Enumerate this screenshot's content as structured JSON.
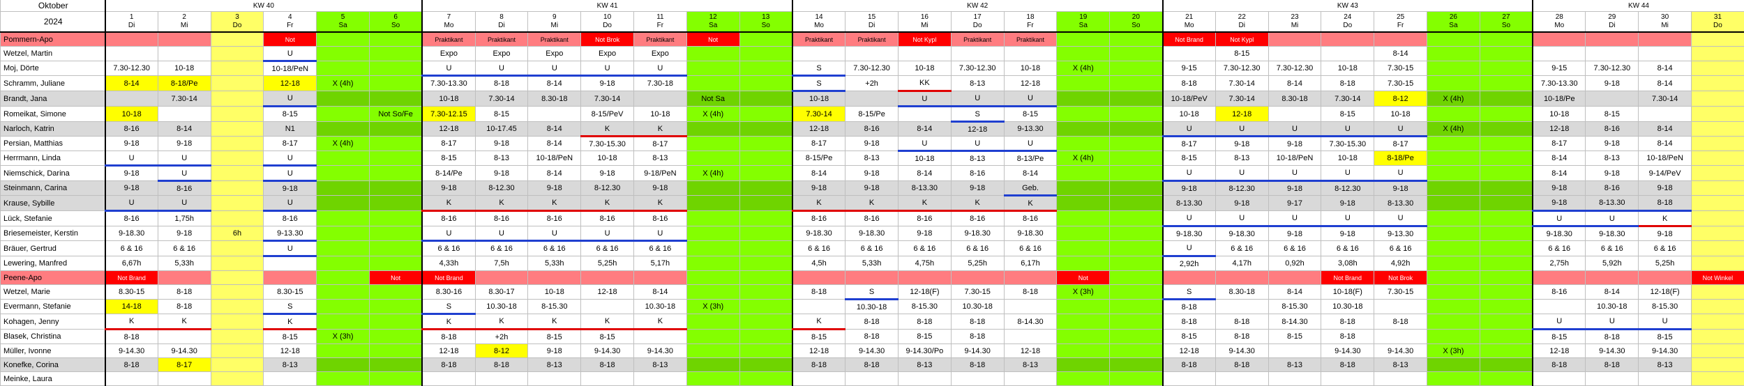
{
  "month": "Oktober",
  "year": "2024",
  "weeks": [
    {
      "label": "KW 40",
      "span": 6
    },
    {
      "label": "KW 41",
      "span": 7
    },
    {
      "label": "KW 42",
      "span": 7
    },
    {
      "label": "KW 43",
      "span": 7
    },
    {
      "label": "KW 44",
      "span": 4
    }
  ],
  "days": [
    {
      "n": "1",
      "d": "Di",
      "t": "wd"
    },
    {
      "n": "2",
      "d": "Mi",
      "t": "wd"
    },
    {
      "n": "3",
      "d": "Do",
      "t": "ho"
    },
    {
      "n": "4",
      "d": "Fr",
      "t": "wd"
    },
    {
      "n": "5",
      "d": "Sa",
      "t": "we"
    },
    {
      "n": "6",
      "d": "So",
      "t": "we"
    },
    {
      "n": "7",
      "d": "Mo",
      "t": "wd"
    },
    {
      "n": "8",
      "d": "Di",
      "t": "wd"
    },
    {
      "n": "9",
      "d": "Mi",
      "t": "wd"
    },
    {
      "n": "10",
      "d": "Do",
      "t": "wd"
    },
    {
      "n": "11",
      "d": "Fr",
      "t": "wd"
    },
    {
      "n": "12",
      "d": "Sa",
      "t": "we"
    },
    {
      "n": "13",
      "d": "So",
      "t": "we"
    },
    {
      "n": "14",
      "d": "Mo",
      "t": "wd"
    },
    {
      "n": "15",
      "d": "Di",
      "t": "wd"
    },
    {
      "n": "16",
      "d": "Mi",
      "t": "wd"
    },
    {
      "n": "17",
      "d": "Do",
      "t": "wd"
    },
    {
      "n": "18",
      "d": "Fr",
      "t": "wd"
    },
    {
      "n": "19",
      "d": "Sa",
      "t": "we"
    },
    {
      "n": "20",
      "d": "So",
      "t": "we"
    },
    {
      "n": "21",
      "d": "Mo",
      "t": "wd"
    },
    {
      "n": "22",
      "d": "Di",
      "t": "wd"
    },
    {
      "n": "23",
      "d": "Mi",
      "t": "wd"
    },
    {
      "n": "24",
      "d": "Do",
      "t": "wd"
    },
    {
      "n": "25",
      "d": "Fr",
      "t": "wd"
    },
    {
      "n": "26",
      "d": "Sa",
      "t": "we"
    },
    {
      "n": "27",
      "d": "So",
      "t": "we"
    },
    {
      "n": "28",
      "d": "Mo",
      "t": "wd"
    },
    {
      "n": "29",
      "d": "Di",
      "t": "wd"
    },
    {
      "n": "30",
      "d": "Mi",
      "t": "wd"
    },
    {
      "n": "31",
      "d": "Do",
      "t": "ho"
    }
  ],
  "colors": {
    "weekend": "#84ff00",
    "holiday": "#ffff66",
    "section": "#ff7c80",
    "alarm": "#ff0000",
    "highlight": "#ffff00",
    "gray_row": "#d9d9d9",
    "underline_blue": "#1f3fd0",
    "underline_red": "#e00000"
  },
  "rows": [
    {
      "type": "section",
      "name": "Pommern-Apo",
      "cells": [
        "",
        "",
        "",
        "Not",
        "",
        "",
        "Praktikant",
        "Praktikant",
        "Praktikant",
        "Not Brok",
        "Praktikant",
        "Not",
        "",
        "Praktikant",
        "Praktikant",
        "Not Kypl",
        "Praktikant",
        "Praktikant",
        "",
        "",
        "Not Brand",
        "Not Kypl",
        "",
        "",
        "",
        "",
        "",
        "",
        "",
        "",
        ""
      ],
      "red": [
        3,
        9,
        11,
        15,
        20,
        21
      ]
    },
    {
      "type": "p",
      "name": "Wetzel, Martin",
      "cells": [
        "",
        "",
        "",
        "U",
        "",
        "",
        "Expo",
        "Expo",
        "Expo",
        "Expo",
        "Expo",
        "",
        "",
        "",
        "",
        "",
        "",
        "",
        "",
        "",
        "",
        "8-15",
        "",
        "",
        "8-14",
        "",
        "",
        "",
        "",
        "",
        ""
      ],
      "ub": [
        3
      ]
    },
    {
      "type": "p",
      "name": "Moj, Dörte",
      "cells": [
        "7.30-12.30",
        "10-18",
        "",
        "10-18/PeN",
        "",
        "",
        "U",
        "U",
        "U",
        "U",
        "U",
        "",
        "",
        "S",
        "7.30-12.30",
        "10-18",
        "7.30-12.30",
        "10-18",
        "X (4h)",
        "",
        "9-15",
        "7.30-12.30",
        "7.30-12.30",
        "10-18",
        "7.30-15",
        "",
        "",
        "9-15",
        "7.30-12.30",
        "8-14",
        ""
      ],
      "ub": [
        6,
        7,
        8,
        9,
        10,
        13
      ]
    },
    {
      "type": "p",
      "name": "Schramm, Juliane",
      "cells": [
        "8-14",
        "8-18/Pe",
        "",
        "12-18",
        "X (4h)",
        "",
        "7.30-13.30",
        "8-18",
        "8-14",
        "9-18",
        "7.30-18",
        "",
        "",
        "S",
        "+2h",
        "KK",
        "8-13",
        "12-18",
        "",
        "",
        "8-18",
        "7.30-14",
        "8-14",
        "8-18",
        "7.30-15",
        "",
        "",
        "7.30-13.30",
        "9-18",
        "8-14",
        ""
      ],
      "yel": [
        0,
        1,
        3
      ],
      "ub": [
        13
      ],
      "ur": [
        15
      ]
    },
    {
      "type": "g",
      "name": "Brandt, Jana",
      "cells": [
        "",
        "7.30-14",
        "",
        "U",
        "",
        "",
        "10-18",
        "7.30-14",
        "8.30-18",
        "7.30-14",
        "",
        "Not Sa",
        "",
        "10-18",
        "",
        "U",
        "U",
        "U",
        "",
        "",
        "10-18/PeV",
        "7.30-14",
        "8.30-18",
        "7.30-14",
        "8-12",
        "X (4h)",
        "",
        "10-18/Pe",
        "",
        "7.30-14",
        ""
      ],
      "yel": [
        24
      ],
      "ub": [
        3,
        15,
        16,
        17
      ]
    },
    {
      "type": "p",
      "name": "Romeikat, Simone",
      "cells": [
        "10-18",
        "",
        "",
        "8-15",
        "",
        "Not So/Fe",
        "7.30-12.15",
        "8-15",
        "",
        "8-15/PeV",
        "10-18",
        "X (4h)",
        "",
        "7.30-14",
        "8-15/Pe",
        "",
        "S",
        "8-15",
        "",
        "",
        "10-18",
        "12-18",
        "",
        "8-15",
        "10-18",
        "",
        "",
        "10-18",
        "8-15",
        "",
        ""
      ],
      "yel": [
        0,
        6,
        13,
        21
      ],
      "ub": [
        16
      ]
    },
    {
      "type": "g",
      "name": "Narloch, Katrin",
      "cells": [
        "8-16",
        "8-14",
        "",
        "N1",
        "",
        "",
        "12-18",
        "10-17.45",
        "8-14",
        "K",
        "K",
        "",
        "",
        "12-18",
        "8-16",
        "8-14",
        "12-18",
        "9-13.30",
        "",
        "",
        "U",
        "U",
        "U",
        "U",
        "U",
        "X (4h)",
        "",
        "12-18",
        "8-16",
        "8-14",
        ""
      ],
      "ur": [
        9,
        10
      ],
      "ub": [
        20,
        21,
        22,
        23,
        24
      ]
    },
    {
      "type": "p",
      "name": "Persian, Matthias",
      "cells": [
        "9-18",
        "9-18",
        "",
        "8-17",
        "X (4h)",
        "",
        "8-17",
        "9-18",
        "8-14",
        "7.30-15.30",
        "8-17",
        "",
        "",
        "8-17",
        "9-18",
        "U",
        "U",
        "U",
        "",
        "",
        "8-17",
        "9-18",
        "9-18",
        "7.30-15.30",
        "8-17",
        "",
        "",
        "8-17",
        "9-18",
        "8-14",
        ""
      ],
      "ub": [
        15,
        16,
        17
      ]
    },
    {
      "type": "p",
      "name": "Herrmann, Linda",
      "cells": [
        "U",
        "U",
        "",
        "U",
        "",
        "",
        "8-15",
        "8-13",
        "10-18/PeN",
        "10-18",
        "8-13",
        "",
        "",
        "8-15/Pe",
        "8-13",
        "10-18",
        "8-13",
        "8-13/Pe",
        "X (4h)",
        "",
        "8-15",
        "8-13",
        "10-18/PeN",
        "10-18",
        "8-18/Pe",
        "",
        "",
        "8-14",
        "8-13",
        "10-18/PeN",
        ""
      ],
      "yel": [
        24
      ],
      "ub": [
        0,
        1,
        3
      ]
    },
    {
      "type": "p",
      "name": "Niemschick, Darina",
      "cells": [
        "9-18",
        "U",
        "",
        "U",
        "",
        "",
        "8-14/Pe",
        "9-18",
        "8-14",
        "9-18",
        "9-18/PeN",
        "X (4h)",
        "",
        "8-14",
        "9-18",
        "8-14",
        "8-16",
        "8-14",
        "",
        "",
        "U",
        "U",
        "U",
        "U",
        "U",
        "",
        "",
        "8-14",
        "9-18",
        "9-14/PeV",
        ""
      ],
      "ub": [
        1,
        3,
        20,
        21,
        22,
        23,
        24
      ]
    },
    {
      "type": "g",
      "name": "Steinmann, Carina",
      "cells": [
        "9-18",
        "8-16",
        "",
        "9-18",
        "",
        "",
        "9-18",
        "8-12.30",
        "9-18",
        "8-12.30",
        "9-18",
        "",
        "",
        "9-18",
        "9-18",
        "8-13.30",
        "9-18",
        "Geb.",
        "",
        "",
        "9-18",
        "8-12.30",
        "9-18",
        "8-12.30",
        "9-18",
        "",
        "",
        "9-18",
        "8-16",
        "9-18",
        ""
      ],
      "ub": [
        17
      ]
    },
    {
      "type": "g",
      "name": "Krause, Sybille",
      "cells": [
        "U",
        "U",
        "",
        "U",
        "",
        "",
        "K",
        "K",
        "K",
        "K",
        "K",
        "",
        "",
        "K",
        "K",
        "K",
        "K",
        "K",
        "",
        "",
        "8-13.30",
        "9-18",
        "9-17",
        "9-18",
        "8-13.30",
        "",
        "",
        "9-18",
        "8-13.30",
        "8-18",
        ""
      ],
      "ub": [
        0,
        1,
        3,
        27,
        28,
        29
      ],
      "ur": [
        6,
        7,
        8,
        9,
        10,
        13,
        14,
        15,
        16,
        17
      ]
    },
    {
      "type": "p",
      "name": "Lück, Stefanie",
      "cells": [
        "8-16",
        "1,75h",
        "",
        "8-16",
        "",
        "",
        "8-16",
        "8-16",
        "8-16",
        "8-16",
        "8-16",
        "",
        "",
        "8-16",
        "8-16",
        "8-16",
        "8-16",
        "8-16",
        "",
        "",
        "U",
        "U",
        "U",
        "U",
        "U",
        "",
        "",
        "U",
        "U",
        "K",
        ""
      ],
      "ub": [
        20,
        21,
        22,
        23,
        24,
        27,
        28
      ],
      "ur": [
        29
      ]
    },
    {
      "type": "p",
      "name": "Briesemeister, Kerstin",
      "cells": [
        "9-18.30",
        "9-18",
        "6h",
        "9-13.30",
        "",
        "",
        "U",
        "U",
        "U",
        "U",
        "U",
        "",
        "",
        "9-18.30",
        "9-18.30",
        "9-18",
        "9-18.30",
        "9-18.30",
        "",
        "",
        "9-18.30",
        "9-18.30",
        "9-18",
        "9-18",
        "9-13.30",
        "",
        "",
        "9-18.30",
        "9-18.30",
        "9-18",
        ""
      ],
      "ub": [
        3,
        6,
        7,
        8,
        9,
        10
      ]
    },
    {
      "type": "p",
      "name": "Bräuer, Gertrud",
      "cells": [
        "6 & 16",
        "6 & 16",
        "",
        "U",
        "",
        "",
        "6 & 16",
        "6 & 16",
        "6 & 16",
        "6 & 16",
        "6 & 16",
        "",
        "",
        "6 & 16",
        "6 & 16",
        "6 & 16",
        "6 & 16",
        "6 & 16",
        "",
        "",
        "U",
        "6 & 16",
        "6 & 16",
        "6 & 16",
        "6 & 16",
        "",
        "",
        "6 & 16",
        "6 & 16",
        "6 & 16",
        ""
      ],
      "ub": [
        3,
        20
      ]
    },
    {
      "type": "p",
      "name": "Lewering, Manfred",
      "cells": [
        "6,67h",
        "5,33h",
        "",
        "",
        "",
        "",
        "4,33h",
        "7,5h",
        "5,33h",
        "5,25h",
        "5,17h",
        "",
        "",
        "4,5h",
        "5,33h",
        "4,75h",
        "5,25h",
        "6,17h",
        "",
        "",
        "2,92h",
        "4,17h",
        "0,92h",
        "3,08h",
        "4,92h",
        "",
        "",
        "2,75h",
        "5,92h",
        "5,25h",
        ""
      ]
    },
    {
      "type": "section",
      "name": "Peene-Apo",
      "cells": [
        "Not Brand",
        "",
        "",
        "",
        "",
        "Not",
        "Not Brand",
        "",
        "",
        "",
        "",
        "",
        "",
        "",
        "",
        "",
        "",
        "",
        "Not",
        "",
        "",
        "",
        "",
        "Not Brand",
        "Not Brok",
        "",
        "",
        "",
        "",
        "",
        "Not Winkel"
      ],
      "red": [
        0,
        5,
        6,
        18,
        23,
        24,
        30
      ]
    },
    {
      "type": "p",
      "name": "Wetzel, Marie",
      "cells": [
        "8.30-15",
        "8-18",
        "",
        "8.30-15",
        "",
        "",
        "8.30-16",
        "8.30-17",
        "10-18",
        "12-18",
        "8-14",
        "",
        "",
        "8-18",
        "S",
        "12-18(F)",
        "7.30-15",
        "8-18",
        "X (3h)",
        "",
        "S",
        "8.30-18",
        "8-14",
        "10-18(F)",
        "7.30-15",
        "",
        "",
        "8-16",
        "8-14",
        "12-18(F)",
        ""
      ],
      "ub": [
        14,
        20
      ]
    },
    {
      "type": "p",
      "name": "Evermann, Stefanie",
      "cells": [
        "14-18",
        "8-18",
        "",
        "S",
        "",
        "",
        "S",
        "10.30-18",
        "8-15.30",
        "",
        "10.30-18",
        "X (3h)",
        "",
        "",
        "10.30-18",
        "8-15.30",
        "10.30-18",
        "",
        "",
        "",
        "8-18",
        "",
        "8-15.30",
        "10.30-18",
        "",
        "",
        "",
        "",
        "10.30-18",
        "8-15.30",
        ""
      ],
      "yel": [
        0
      ],
      "ub": [
        3,
        6
      ]
    },
    {
      "type": "p",
      "name": "Kohagen, Jenny",
      "cells": [
        "K",
        "K",
        "",
        "K",
        "",
        "",
        "K",
        "K",
        "K",
        "K",
        "K",
        "",
        "",
        "K",
        "8-18",
        "8-18",
        "8-18",
        "8-14.30",
        "",
        "",
        "8-18",
        "8-18",
        "8-14.30",
        "8-18",
        "8-18",
        "",
        "",
        "U",
        "U",
        "U",
        ""
      ],
      "ur": [
        0,
        1,
        3,
        6,
        7,
        8,
        9,
        10,
        13
      ],
      "ub": [
        27,
        28,
        29
      ]
    },
    {
      "type": "p",
      "name": "Blasek, Christina",
      "cells": [
        "8-18",
        "",
        "",
        "8-15",
        "X (3h)",
        "",
        "8-18",
        "+2h",
        "8-15",
        "8-15",
        "",
        "",
        "",
        "8-15",
        "8-18",
        "8-15",
        "8-18",
        "",
        "",
        "",
        "8-15",
        "8-18",
        "8-15",
        "8-18",
        "",
        "",
        "",
        "8-15",
        "8-18",
        "8-15",
        ""
      ]
    },
    {
      "type": "p",
      "name": "Müller, Ivonne",
      "cells": [
        "9-14.30",
        "9-14.30",
        "",
        "12-18",
        "",
        "",
        "12-18",
        "8-12",
        "9-18",
        "9-14.30",
        "9-14.30",
        "",
        "",
        "12-18",
        "9-14.30",
        "9-14.30/Po",
        "9-14.30",
        "12-18",
        "",
        "",
        "12-18",
        "9-14.30",
        "",
        "9-14.30",
        "9-14.30",
        "X (3h)",
        "",
        "12-18",
        "9-14.30",
        "9-14.30",
        ""
      ],
      "yel": [
        7
      ]
    },
    {
      "type": "g",
      "name": "Konefke, Corina",
      "cells": [
        "8-18",
        "8-17",
        "",
        "8-13",
        "",
        "",
        "8-18",
        "8-18",
        "8-13",
        "8-18",
        "8-13",
        "",
        "",
        "8-18",
        "8-18",
        "8-13",
        "8-18",
        "8-13",
        "",
        "",
        "8-18",
        "8-18",
        "8-13",
        "8-18",
        "8-13",
        "",
        "",
        "8-18",
        "8-18",
        "8-13",
        ""
      ],
      "yel": [
        1
      ]
    },
    {
      "type": "p",
      "name": "Meinke, Laura",
      "cells": [
        "",
        "",
        "",
        "",
        "",
        "",
        "",
        "",
        "",
        "",
        "",
        "",
        "",
        "",
        "",
        "",
        "",
        "",
        "",
        "",
        "",
        "",
        "",
        "",
        "",
        "",
        "",
        "",
        "",
        "",
        ""
      ]
    }
  ]
}
